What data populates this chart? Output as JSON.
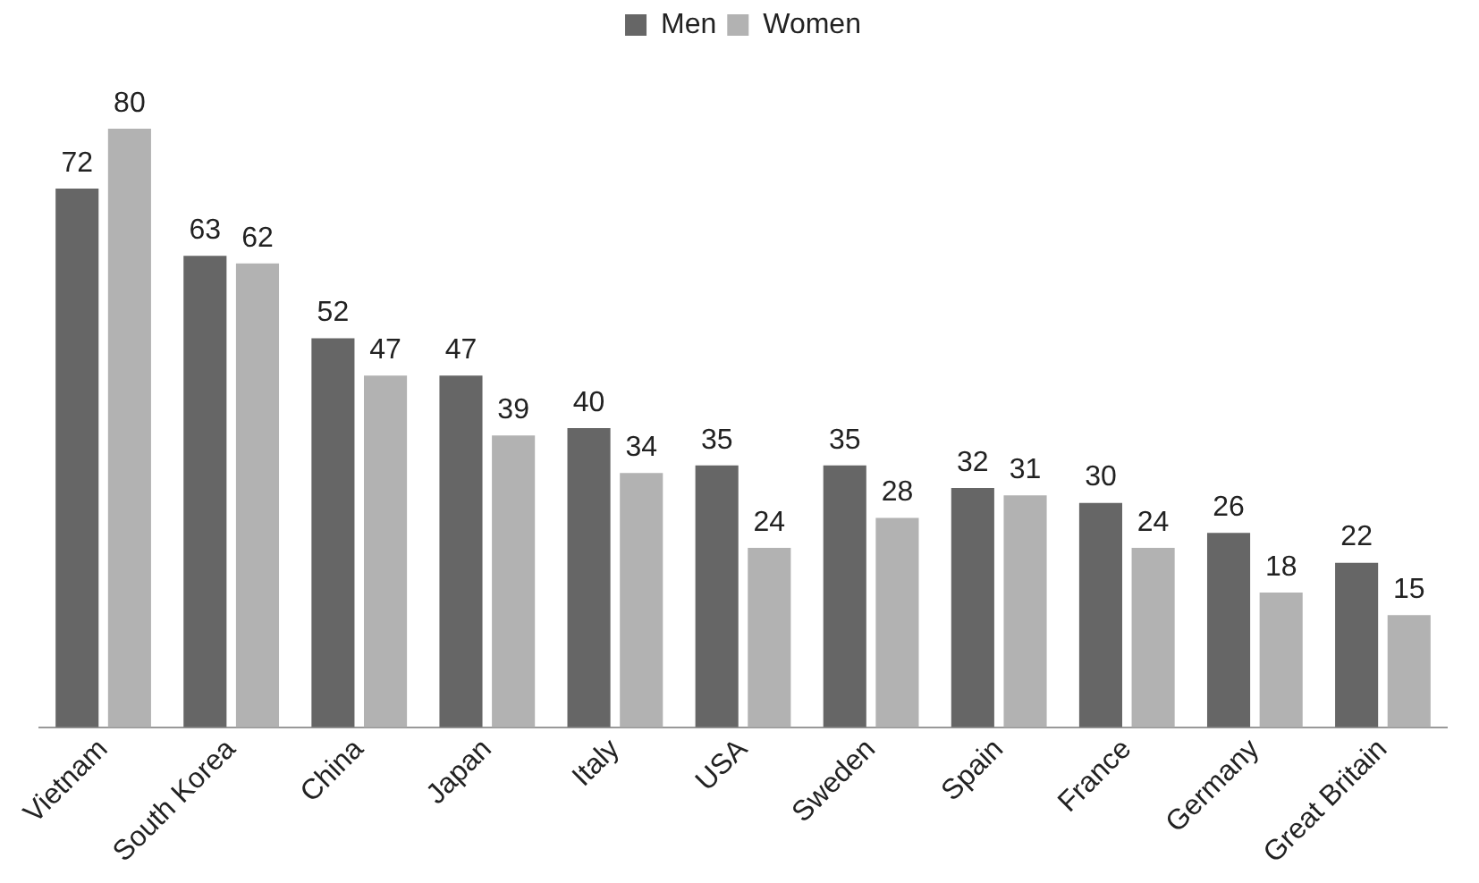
{
  "chart_data": {
    "type": "bar",
    "categories": [
      "Vietnam",
      "South Korea",
      "China",
      "Japan",
      "Italy",
      "USA",
      "Sweden",
      "Spain",
      "France",
      "Germany",
      "Great Britain"
    ],
    "series": [
      {
        "name": "Men",
        "color": "#666666",
        "values": [
          72,
          63,
          52,
          47,
          40,
          35,
          35,
          32,
          30,
          26,
          22
        ]
      },
      {
        "name": "Women",
        "color": "#b2b2b2",
        "values": [
          80,
          62,
          47,
          39,
          34,
          24,
          28,
          31,
          24,
          18,
          15
        ]
      }
    ],
    "data_labels": true,
    "legend": "top",
    "grid": false,
    "tick_labels": "x"
  }
}
